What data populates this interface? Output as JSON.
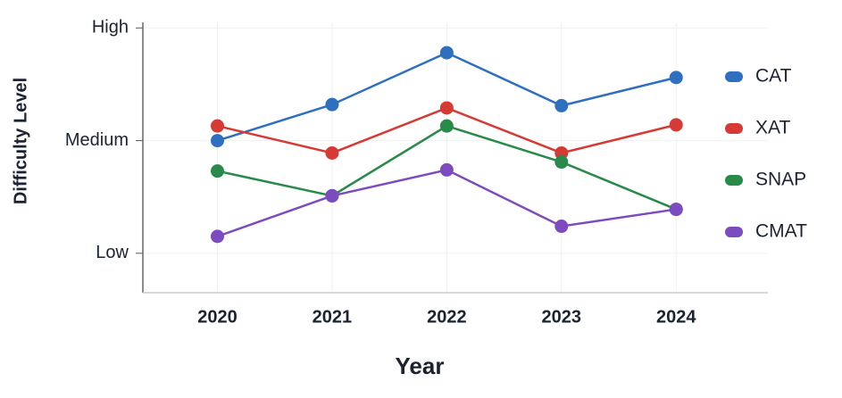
{
  "chart_data": {
    "type": "line",
    "x_label": "Year",
    "y_label": "Difficulty Level",
    "x": [
      2020,
      2021,
      2022,
      2023,
      2024
    ],
    "xlim": [
      2019.35,
      2024.8
    ],
    "xticks": [
      2020,
      2021,
      2022,
      2023,
      2024
    ],
    "ylim": [
      0.65,
      3.05
    ],
    "yticks": [
      {
        "value": 1,
        "label": "Low"
      },
      {
        "value": 2,
        "label": "Medium"
      },
      {
        "value": 3,
        "label": "High"
      }
    ],
    "grid": true,
    "legend": "right",
    "series": [
      {
        "name": "CAT",
        "color": "#2f6fc0",
        "values": [
          2.0,
          2.32,
          2.78,
          2.31,
          2.56
        ]
      },
      {
        "name": "XAT",
        "color": "#d63a35",
        "values": [
          2.13,
          1.89,
          2.29,
          1.89,
          2.14
        ]
      },
      {
        "name": "SNAP",
        "color": "#2a8a4a",
        "values": [
          1.73,
          1.51,
          2.13,
          1.81,
          1.39
        ]
      },
      {
        "name": "CMAT",
        "color": "#7c4bbf",
        "values": [
          1.15,
          1.51,
          1.74,
          1.24,
          1.39
        ]
      }
    ]
  }
}
